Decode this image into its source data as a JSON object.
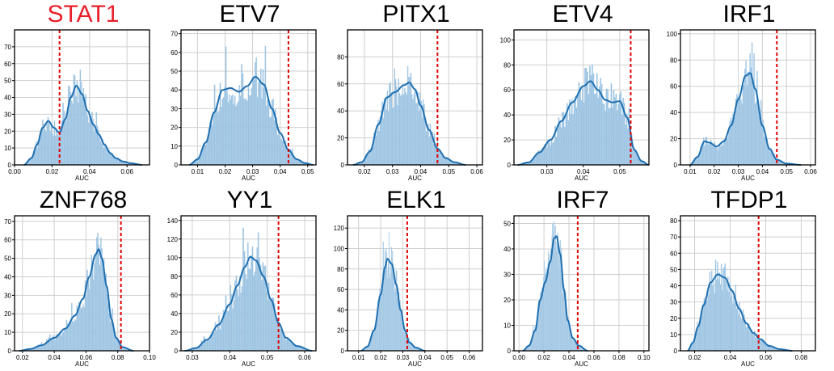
{
  "chart_data": [
    {
      "type": "histogram",
      "title": "STAT1",
      "title_color": "#e8202a",
      "xlabel": "AUC",
      "xlim": [
        0.0,
        0.072
      ],
      "xticks": [
        "0.00",
        "0.02",
        "0.04",
        "0.06"
      ],
      "xtick_values": [
        0,
        0.02,
        0.04,
        0.06
      ],
      "ylim": [
        0,
        80
      ],
      "yticks": [
        "0",
        "10",
        "20",
        "30",
        "40",
        "50",
        "60",
        "70"
      ],
      "ytick_values": [
        0,
        10,
        20,
        30,
        40,
        50,
        60,
        70
      ],
      "threshold": 0.024,
      "kde": [
        [
          0.005,
          0
        ],
        [
          0.009,
          4
        ],
        [
          0.012,
          12
        ],
        [
          0.015,
          22
        ],
        [
          0.018,
          26
        ],
        [
          0.021,
          22
        ],
        [
          0.024,
          19
        ],
        [
          0.027,
          27
        ],
        [
          0.03,
          40
        ],
        [
          0.033,
          47
        ],
        [
          0.036,
          42
        ],
        [
          0.039,
          32
        ],
        [
          0.042,
          24
        ],
        [
          0.045,
          18
        ],
        [
          0.048,
          12
        ],
        [
          0.051,
          7
        ],
        [
          0.054,
          4
        ],
        [
          0.058,
          2
        ],
        [
          0.062,
          1
        ],
        [
          0.068,
          0
        ]
      ]
    },
    {
      "type": "histogram",
      "title": "ETV7",
      "title_color": "#000000",
      "xlabel": "AUC",
      "xlim": [
        0.004,
        0.053
      ],
      "xticks": [
        "0.01",
        "0.02",
        "0.03",
        "0.04",
        "0.05"
      ],
      "xtick_values": [
        0.01,
        0.02,
        0.03,
        0.04,
        0.05
      ],
      "ylim": [
        0,
        72
      ],
      "yticks": [
        "0",
        "10",
        "20",
        "30",
        "40",
        "50",
        "60",
        "70"
      ],
      "ytick_values": [
        0,
        10,
        20,
        30,
        40,
        50,
        60,
        70
      ],
      "threshold": 0.043,
      "kde": [
        [
          0.007,
          0
        ],
        [
          0.01,
          3
        ],
        [
          0.013,
          12
        ],
        [
          0.016,
          28
        ],
        [
          0.019,
          40
        ],
        [
          0.022,
          41
        ],
        [
          0.025,
          39
        ],
        [
          0.028,
          42
        ],
        [
          0.031,
          47
        ],
        [
          0.034,
          43
        ],
        [
          0.037,
          30
        ],
        [
          0.04,
          17
        ],
        [
          0.043,
          8
        ],
        [
          0.046,
          3
        ],
        [
          0.049,
          1
        ],
        [
          0.052,
          0
        ]
      ]
    },
    {
      "type": "histogram",
      "title": "PITX1",
      "title_color": "#000000",
      "xlabel": "AUC",
      "xlim": [
        0.014,
        0.062
      ],
      "xticks": [
        "0.02",
        "0.03",
        "0.04",
        "0.05",
        "0.06"
      ],
      "xtick_values": [
        0.02,
        0.03,
        0.04,
        0.05,
        0.06
      ],
      "ylim": [
        0,
        100
      ],
      "yticks": [
        "0",
        "20",
        "40",
        "60",
        "80"
      ],
      "ytick_values": [
        0,
        20,
        40,
        60,
        80
      ],
      "threshold": 0.046,
      "kde": [
        [
          0.016,
          0
        ],
        [
          0.019,
          2
        ],
        [
          0.022,
          10
        ],
        [
          0.025,
          30
        ],
        [
          0.028,
          50
        ],
        [
          0.031,
          54
        ],
        [
          0.034,
          59
        ],
        [
          0.036,
          61
        ],
        [
          0.038,
          56
        ],
        [
          0.04,
          44
        ],
        [
          0.043,
          26
        ],
        [
          0.046,
          12
        ],
        [
          0.049,
          5
        ],
        [
          0.052,
          2
        ],
        [
          0.056,
          0
        ]
      ]
    },
    {
      "type": "histogram",
      "title": "ETV4",
      "title_color": "#000000",
      "xlabel": "AUC",
      "xlim": [
        0.021,
        0.058
      ],
      "xticks": [
        "0.03",
        "0.04",
        "0.05"
      ],
      "xtick_values": [
        0.03,
        0.04,
        0.05
      ],
      "ylim": [
        0,
        108
      ],
      "yticks": [
        "0",
        "20",
        "40",
        "60",
        "80",
        "100"
      ],
      "ytick_values": [
        0,
        20,
        40,
        60,
        80,
        100
      ],
      "threshold": 0.053,
      "kde": [
        [
          0.022,
          0
        ],
        [
          0.025,
          2
        ],
        [
          0.028,
          10
        ],
        [
          0.031,
          20
        ],
        [
          0.034,
          35
        ],
        [
          0.037,
          50
        ],
        [
          0.04,
          63
        ],
        [
          0.042,
          67
        ],
        [
          0.044,
          60
        ],
        [
          0.046,
          52
        ],
        [
          0.048,
          50
        ],
        [
          0.05,
          51
        ],
        [
          0.052,
          38
        ],
        [
          0.054,
          12
        ],
        [
          0.056,
          3
        ],
        [
          0.058,
          0
        ]
      ]
    },
    {
      "type": "histogram",
      "title": "IRF1",
      "title_color": "#000000",
      "xlabel": "AUC",
      "xlim": [
        0.006,
        0.062
      ],
      "xticks": [
        "0.01",
        "0.02",
        "0.03",
        "0.04",
        "0.05",
        "0.06"
      ],
      "xtick_values": [
        0.01,
        0.02,
        0.03,
        0.04,
        0.05,
        0.06
      ],
      "ylim": [
        0,
        103
      ],
      "yticks": [
        "0",
        "20",
        "40",
        "60",
        "80",
        "100"
      ],
      "ytick_values": [
        0,
        20,
        40,
        60,
        80,
        100
      ],
      "threshold": 0.046,
      "kde": [
        [
          0.01,
          0
        ],
        [
          0.013,
          6
        ],
        [
          0.016,
          18
        ],
        [
          0.018,
          17
        ],
        [
          0.021,
          14
        ],
        [
          0.024,
          18
        ],
        [
          0.027,
          30
        ],
        [
          0.03,
          50
        ],
        [
          0.033,
          68
        ],
        [
          0.035,
          70
        ],
        [
          0.037,
          58
        ],
        [
          0.04,
          30
        ],
        [
          0.043,
          12
        ],
        [
          0.046,
          4
        ],
        [
          0.05,
          1
        ],
        [
          0.056,
          0
        ]
      ]
    },
    {
      "type": "histogram",
      "title": "ZNF768",
      "title_color": "#000000",
      "xlabel": "AUC",
      "xlim": [
        0.015,
        0.1
      ],
      "xticks": [
        "0.02",
        "0.04",
        "0.06",
        "0.08",
        "0.10"
      ],
      "xtick_values": [
        0.02,
        0.04,
        0.06,
        0.08,
        0.1
      ],
      "ylim": [
        0,
        73
      ],
      "yticks": [
        "0",
        "10",
        "20",
        "30",
        "40",
        "50",
        "60",
        "70"
      ],
      "ytick_values": [
        0,
        10,
        20,
        30,
        40,
        50,
        60,
        70
      ],
      "threshold": 0.082,
      "kde": [
        [
          0.018,
          0
        ],
        [
          0.025,
          1
        ],
        [
          0.032,
          3
        ],
        [
          0.04,
          7
        ],
        [
          0.047,
          12
        ],
        [
          0.053,
          19
        ],
        [
          0.058,
          28
        ],
        [
          0.062,
          40
        ],
        [
          0.066,
          52
        ],
        [
          0.068,
          55
        ],
        [
          0.07,
          50
        ],
        [
          0.073,
          35
        ],
        [
          0.076,
          17
        ],
        [
          0.079,
          7
        ],
        [
          0.083,
          2
        ],
        [
          0.09,
          0
        ]
      ]
    },
    {
      "type": "histogram",
      "title": "YY1",
      "title_color": "#000000",
      "xlabel": "AUC",
      "xlim": [
        0.027,
        0.063
      ],
      "xticks": [
        "0.03",
        "0.04",
        "0.05",
        "0.06"
      ],
      "xtick_values": [
        0.03,
        0.04,
        0.05,
        0.06
      ],
      "ylim": [
        0,
        145
      ],
      "yticks": [
        "0",
        "20",
        "40",
        "60",
        "80",
        "100",
        "120",
        "140"
      ],
      "ytick_values": [
        0,
        20,
        40,
        60,
        80,
        100,
        120,
        140
      ],
      "threshold": 0.053,
      "kde": [
        [
          0.028,
          0
        ],
        [
          0.031,
          3
        ],
        [
          0.034,
          12
        ],
        [
          0.037,
          28
        ],
        [
          0.04,
          50
        ],
        [
          0.042,
          70
        ],
        [
          0.044,
          90
        ],
        [
          0.0455,
          101
        ],
        [
          0.047,
          97
        ],
        [
          0.049,
          80
        ],
        [
          0.051,
          55
        ],
        [
          0.053,
          30
        ],
        [
          0.055,
          14
        ],
        [
          0.058,
          5
        ],
        [
          0.062,
          0
        ]
      ]
    },
    {
      "type": "histogram",
      "title": "ELK1",
      "title_color": "#000000",
      "xlabel": "AUC",
      "xlim": [
        0.005,
        0.066
      ],
      "xticks": [
        "0.01",
        "0.02",
        "0.03",
        "0.04",
        "0.05",
        "0.06"
      ],
      "xtick_values": [
        0.01,
        0.02,
        0.03,
        0.04,
        0.05,
        0.06
      ],
      "ylim": [
        0,
        132
      ],
      "yticks": [
        "0",
        "20",
        "40",
        "60",
        "80",
        "100",
        "120"
      ],
      "ytick_values": [
        0,
        20,
        40,
        60,
        80,
        100,
        120
      ],
      "threshold": 0.032,
      "kde": [
        [
          0.011,
          0
        ],
        [
          0.014,
          4
        ],
        [
          0.017,
          20
        ],
        [
          0.02,
          55
        ],
        [
          0.022,
          82
        ],
        [
          0.023,
          90
        ],
        [
          0.025,
          85
        ],
        [
          0.027,
          65
        ],
        [
          0.029,
          40
        ],
        [
          0.031,
          20
        ],
        [
          0.033,
          8
        ],
        [
          0.036,
          3
        ],
        [
          0.04,
          0
        ]
      ]
    },
    {
      "type": "histogram",
      "title": "IRF7",
      "title_color": "#000000",
      "xlabel": "AUC",
      "xlim": [
        -0.004,
        0.104
      ],
      "xticks": [
        "0.00",
        "0.02",
        "0.04",
        "0.06",
        "0.08",
        "0.10"
      ],
      "xtick_values": [
        0,
        0.02,
        0.04,
        0.06,
        0.08,
        0.1
      ],
      "ylim": [
        0,
        53
      ],
      "yticks": [
        "0",
        "10",
        "20",
        "30",
        "40",
        "50"
      ],
      "ytick_values": [
        0,
        10,
        20,
        30,
        40,
        50
      ],
      "threshold": 0.047,
      "kde": [
        [
          0.003,
          0
        ],
        [
          0.008,
          2
        ],
        [
          0.013,
          8
        ],
        [
          0.017,
          20
        ],
        [
          0.021,
          27
        ],
        [
          0.025,
          35
        ],
        [
          0.028,
          44
        ],
        [
          0.03,
          45
        ],
        [
          0.033,
          38
        ],
        [
          0.036,
          24
        ],
        [
          0.039,
          12
        ],
        [
          0.043,
          5
        ],
        [
          0.048,
          2
        ],
        [
          0.055,
          0
        ]
      ]
    },
    {
      "type": "histogram",
      "title": "TFDP1",
      "title_color": "#000000",
      "xlabel": "AUC",
      "xlim": [
        0.012,
        0.088
      ],
      "xticks": [
        "0.02",
        "0.04",
        "0.06",
        "0.08"
      ],
      "xtick_values": [
        0.02,
        0.04,
        0.06,
        0.08
      ],
      "ylim": [
        0,
        83
      ],
      "yticks": [
        "0",
        "10",
        "20",
        "30",
        "40",
        "50",
        "60",
        "70",
        "80"
      ],
      "ytick_values": [
        0,
        10,
        20,
        30,
        40,
        50,
        60,
        70,
        80
      ],
      "threshold": 0.056,
      "kde": [
        [
          0.016,
          0
        ],
        [
          0.019,
          5
        ],
        [
          0.022,
          15
        ],
        [
          0.025,
          28
        ],
        [
          0.029,
          42
        ],
        [
          0.033,
          47
        ],
        [
          0.037,
          45
        ],
        [
          0.041,
          37
        ],
        [
          0.045,
          26
        ],
        [
          0.049,
          17
        ],
        [
          0.053,
          11
        ],
        [
          0.057,
          7
        ],
        [
          0.062,
          3
        ],
        [
          0.068,
          1
        ],
        [
          0.075,
          0
        ]
      ]
    }
  ]
}
